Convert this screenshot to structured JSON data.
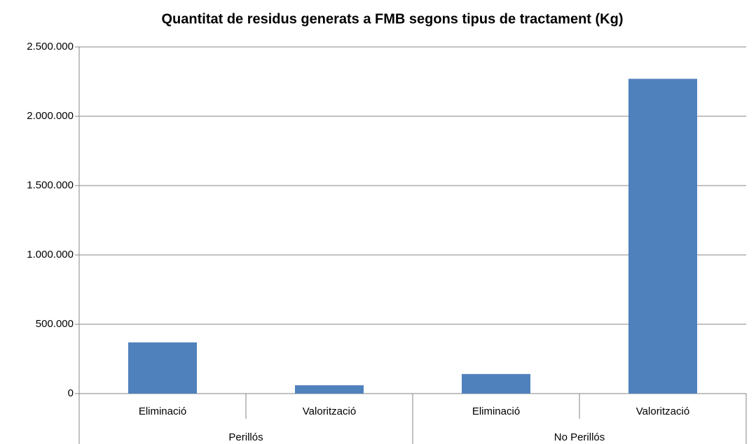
{
  "chart_data": {
    "type": "bar",
    "title": "Quantitat de  residus generats a FMB segons tipus de tractament (Kg)",
    "groups": [
      {
        "name": "Perillós",
        "categories": [
          "Eliminació",
          "Valorització"
        ]
      },
      {
        "name": "No Perillós",
        "categories": [
          "Eliminació",
          "Valorització"
        ]
      }
    ],
    "values": [
      369000,
      60000,
      141000,
      2270000
    ],
    "color": "#4f81bd",
    "ylim": [
      0,
      2500000
    ],
    "yticks": [
      0,
      {
        "value": 500000,
        "label": "500.000"
      },
      {
        "value": 1000000,
        "label": "1.000.000"
      },
      {
        "value": 1500000,
        "label": "1.500.000"
      },
      {
        "value": 2000000,
        "label": "2.000.000"
      },
      {
        "value": 2500000,
        "label": "2.500.000"
      }
    ],
    "grid": true
  }
}
